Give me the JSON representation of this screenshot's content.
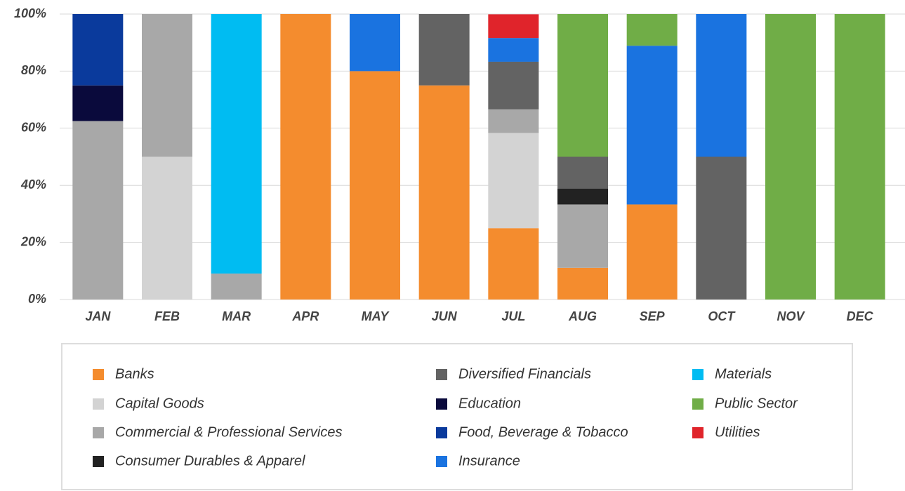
{
  "chart_data": {
    "type": "stacked_bar_percent",
    "categories": [
      "JAN",
      "FEB",
      "MAR",
      "APR",
      "MAY",
      "JUN",
      "JUL",
      "AUG",
      "SEP",
      "OCT",
      "NOV",
      "DEC"
    ],
    "ylim": [
      0,
      100
    ],
    "yticks": [
      {
        "value": 0,
        "label": "0%"
      },
      {
        "value": 20,
        "label": "20%"
      },
      {
        "value": 40,
        "label": "40%"
      },
      {
        "value": 60,
        "label": "60%"
      },
      {
        "value": 80,
        "label": "80%"
      },
      {
        "value": 100,
        "label": "100%"
      }
    ],
    "grid": true,
    "legend": "bottom",
    "series": [
      {
        "name": "Banks",
        "color": "#f48c2e",
        "values": [
          0,
          0,
          0,
          100,
          80,
          75,
          25,
          11.1,
          33.3,
          0,
          0,
          0
        ]
      },
      {
        "name": "Capital Goods",
        "color": "#d3d3d3",
        "values": [
          0,
          50,
          0,
          0,
          0,
          0,
          33.3,
          0,
          0,
          0,
          0,
          0
        ]
      },
      {
        "name": "Commercial & Professional Services",
        "color": "#a8a8a8",
        "values": [
          62.5,
          50,
          9.1,
          0,
          0,
          0,
          8.3,
          22.2,
          0,
          0,
          0,
          0
        ]
      },
      {
        "name": "Consumer Durables & Apparel",
        "color": "#222222",
        "values": [
          0,
          0,
          0,
          0,
          0,
          0,
          0,
          5.6,
          0,
          0,
          0,
          0
        ]
      },
      {
        "name": "Diversified Financials",
        "color": "#636363",
        "values": [
          0,
          0,
          0,
          0,
          0,
          25,
          16.7,
          11.1,
          0,
          50,
          0,
          0
        ]
      },
      {
        "name": "Education",
        "color": "#0a0a3c",
        "values": [
          12.5,
          0,
          0,
          0,
          0,
          0,
          0,
          0,
          0,
          0,
          0,
          0
        ]
      },
      {
        "name": "Food, Beverage & Tobacco",
        "color": "#0a3a9c",
        "values": [
          25,
          0,
          0,
          0,
          0,
          0,
          0,
          0,
          0,
          0,
          0,
          0
        ]
      },
      {
        "name": "Insurance",
        "color": "#1a73e0",
        "values": [
          0,
          0,
          0,
          0,
          20,
          0,
          8.3,
          0,
          55.6,
          50,
          0,
          0
        ]
      },
      {
        "name": "Materials",
        "color": "#00bcf2",
        "values": [
          0,
          0,
          90.9,
          0,
          0,
          0,
          0,
          0,
          0,
          0,
          0,
          0
        ]
      },
      {
        "name": "Public Sector",
        "color": "#70ad47",
        "values": [
          0,
          0,
          0,
          0,
          0,
          0,
          0,
          50,
          11.1,
          0,
          100,
          100
        ]
      },
      {
        "name": "Utilities",
        "color": "#e0242b",
        "values": [
          0,
          0,
          0,
          0,
          0,
          0,
          8.3,
          0,
          0,
          0,
          0,
          0
        ]
      }
    ]
  }
}
